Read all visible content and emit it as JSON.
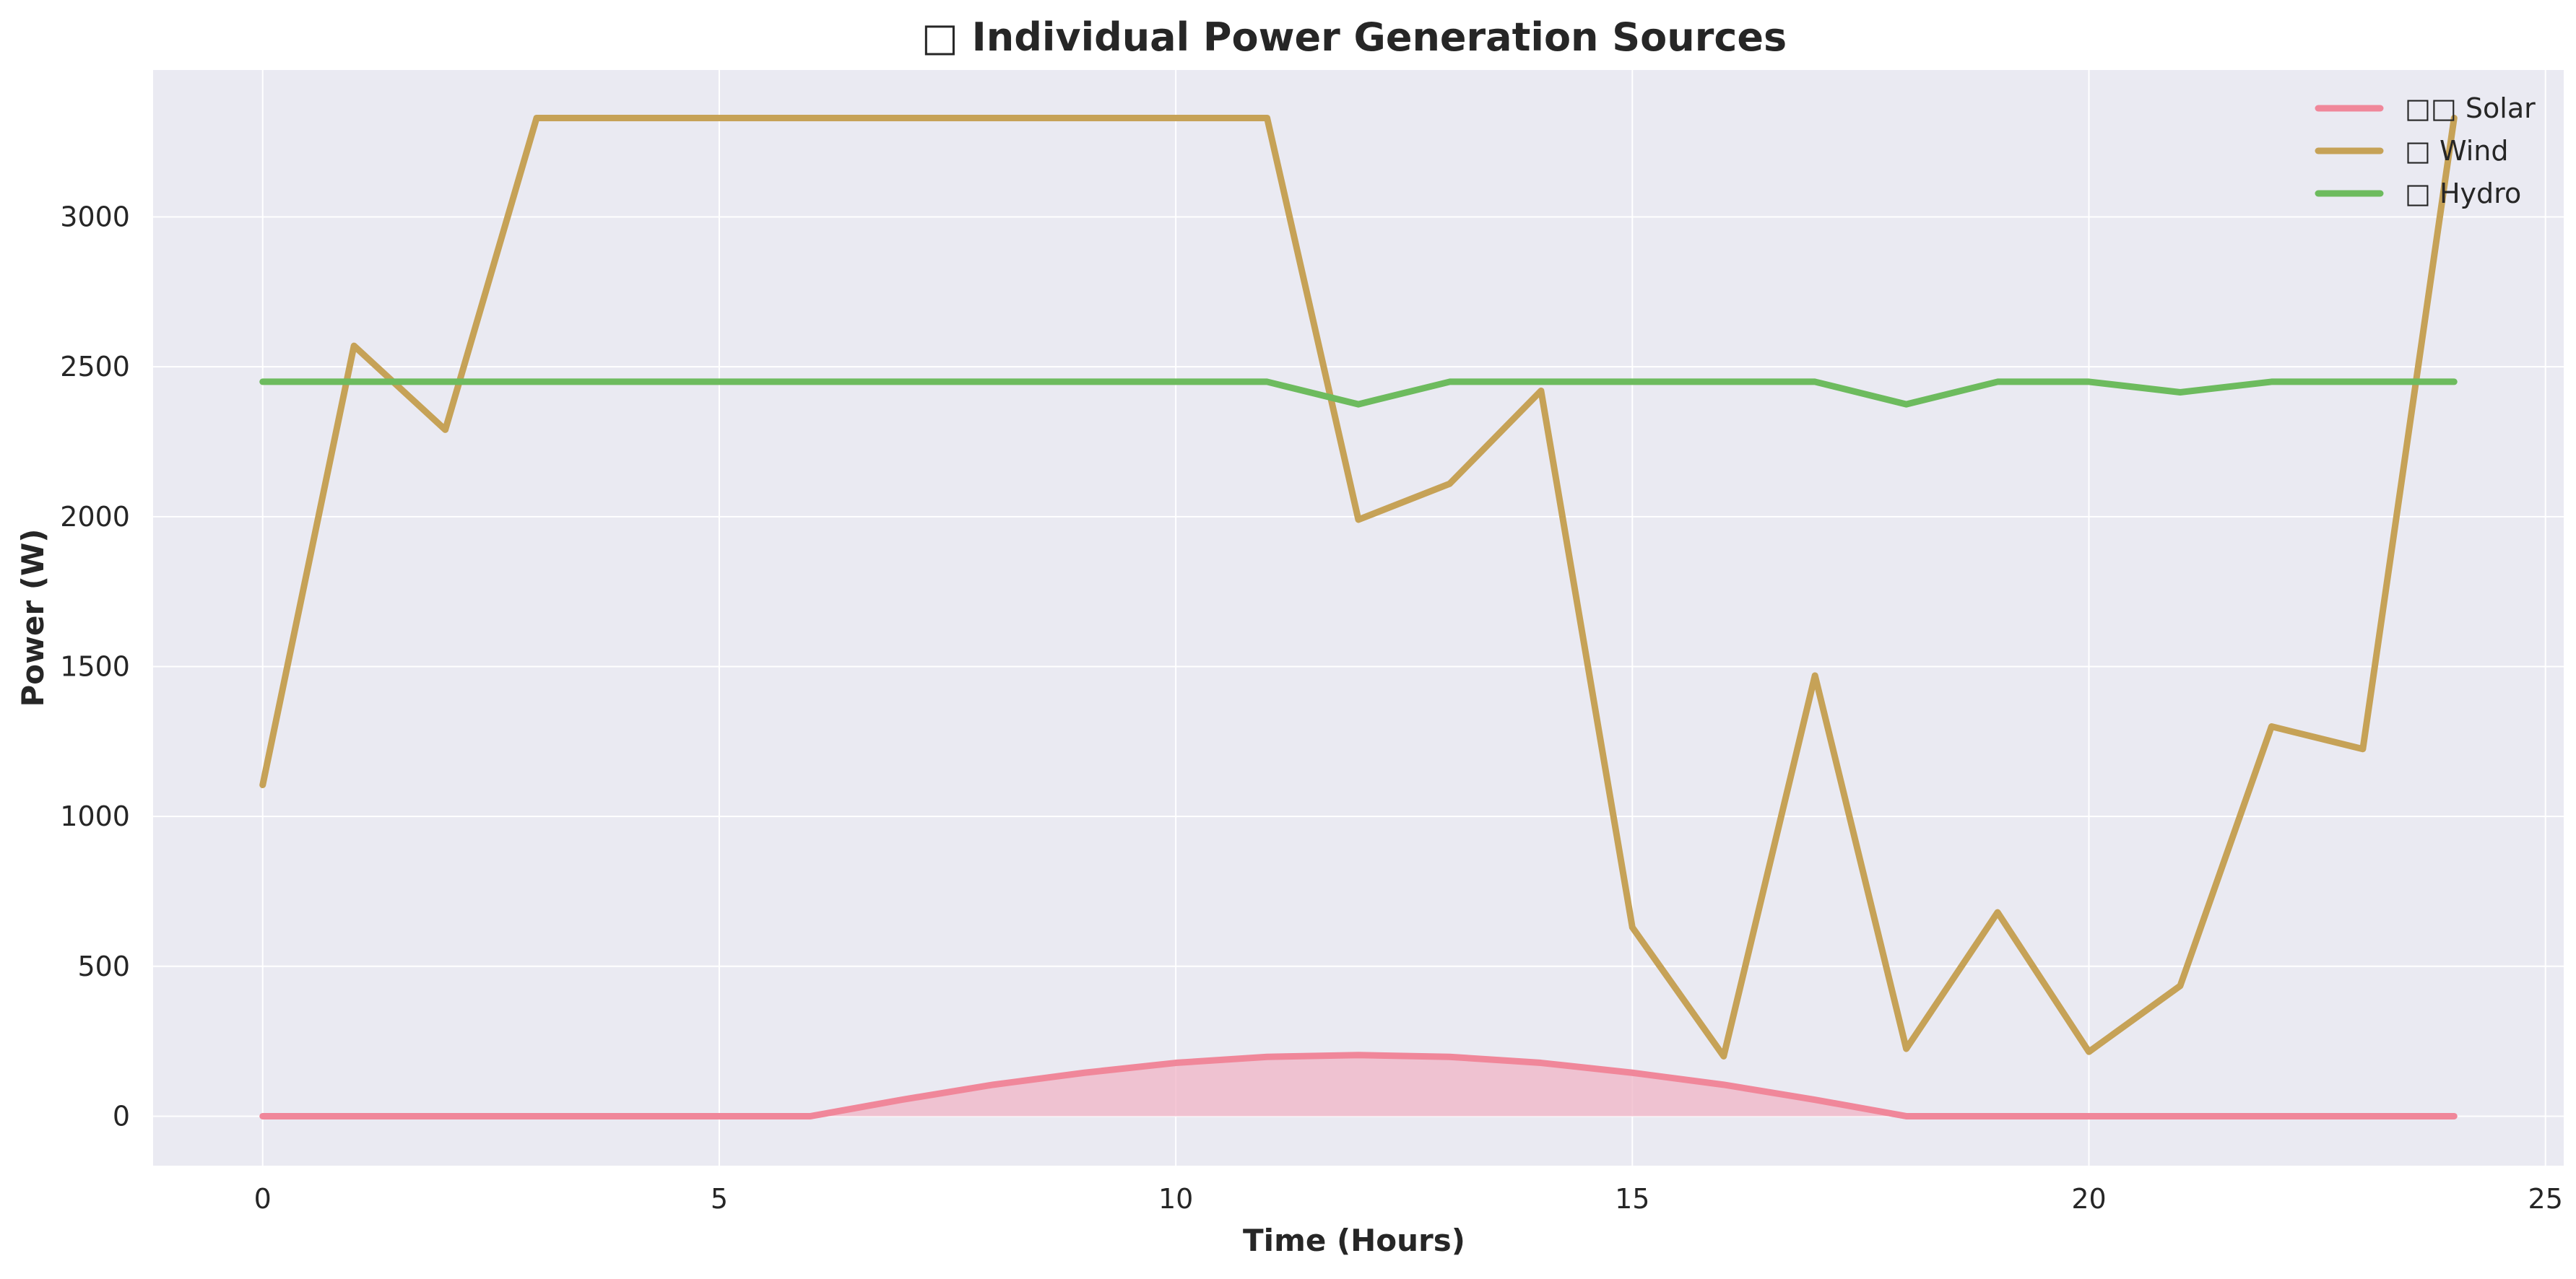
{
  "chart_data": {
    "type": "line",
    "title": "□ Individual Power Generation Sources",
    "xlabel": "Time (Hours)",
    "ylabel": "Power (W)",
    "xlim": [
      -1.2,
      25.2
    ],
    "ylim": [
      -165,
      3490
    ],
    "x_ticks": [
      0,
      5,
      10,
      15,
      20,
      25
    ],
    "y_ticks": [
      0,
      500,
      1000,
      1500,
      2000,
      2500,
      3000
    ],
    "grid": true,
    "legend_position": "top-right",
    "x": [
      0,
      1,
      2,
      3,
      4,
      5,
      6,
      7,
      8,
      9,
      10,
      11,
      12,
      13,
      14,
      15,
      16,
      17,
      18,
      19,
      20,
      21,
      22,
      23,
      24
    ],
    "series": [
      {
        "name": "□□ Solar",
        "color": "#f0879a",
        "fill": "#f0b4c6",
        "filled_area": true,
        "values": [
          0,
          0,
          0,
          0,
          0,
          0,
          0,
          55,
          105,
          145,
          178,
          198,
          204,
          198,
          178,
          145,
          105,
          55,
          0,
          0,
          0,
          0,
          0,
          0,
          0
        ]
      },
      {
        "name": "□ Wind",
        "color": "#c6a257",
        "values": [
          1105,
          2570,
          2290,
          3330,
          3330,
          3330,
          3330,
          3330,
          3330,
          3330,
          3330,
          3330,
          1990,
          2110,
          2420,
          630,
          200,
          1470,
          225,
          680,
          215,
          435,
          1300,
          1225,
          3330
        ]
      },
      {
        "name": "□ Hydro",
        "color": "#6dbb5e",
        "values": [
          2450,
          2450,
          2450,
          2450,
          2450,
          2450,
          2450,
          2450,
          2450,
          2450,
          2450,
          2450,
          2375,
          2450,
          2450,
          2450,
          2450,
          2450,
          2375,
          2450,
          2450,
          2415,
          2450,
          2450,
          2450
        ]
      }
    ]
  },
  "colors": {
    "plot_background": "#eaeaf2",
    "grid": "#ffffff",
    "text": "#262626"
  }
}
